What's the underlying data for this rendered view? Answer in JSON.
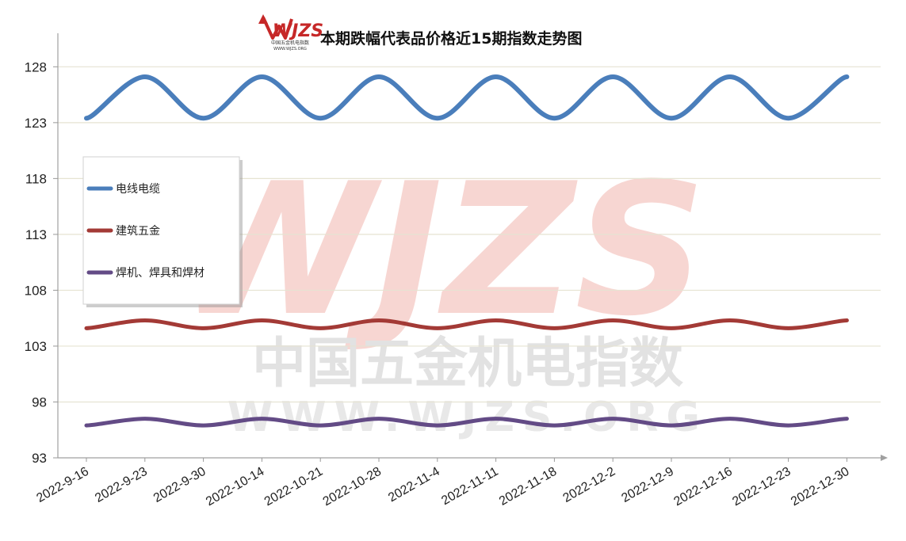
{
  "watermark": {
    "logo_text": "WJZS",
    "logo_sub": "中国五金机电指数",
    "logo_url": "WWW.WJZS.ORG",
    "brand_color": "#d9302a"
  },
  "chart_data": {
    "type": "line",
    "title": "本期跌幅代表品价格近15期指数走势图",
    "xlabel": "",
    "ylabel": "",
    "ylim": [
      93,
      131
    ],
    "yticks": [
      93,
      98,
      103,
      108,
      113,
      118,
      123,
      128
    ],
    "grid": true,
    "legend_position": "left",
    "categories": [
      "2022-9-16",
      "2022-9-23",
      "2022-9-30",
      "2022-10-14",
      "2022-10-21",
      "2022-10-28",
      "2022-11-4",
      "2022-11-11",
      "2022-11-18",
      "2022-12-2",
      "2022-12-9",
      "2022-12-16",
      "2022-12-23",
      "2022-12-30"
    ],
    "series": [
      {
        "name": "电线电缆",
        "color": "#4a7ebb",
        "values": [
          123.4,
          127.1,
          123.4,
          127.1,
          123.4,
          127.1,
          123.4,
          127.1,
          123.4,
          127.1,
          123.4,
          127.1,
          123.4,
          127.1
        ]
      },
      {
        "name": "建筑五金",
        "color": "#a33a36",
        "values": [
          104.6,
          105.3,
          104.6,
          105.3,
          104.6,
          105.3,
          104.6,
          105.3,
          104.6,
          105.3,
          104.6,
          105.3,
          104.6,
          105.3
        ]
      },
      {
        "name": "焊机、焊具和焊材",
        "color": "#634b86",
        "values": [
          95.9,
          96.5,
          95.9,
          96.5,
          95.9,
          96.5,
          95.9,
          96.5,
          95.9,
          96.5,
          95.9,
          96.5,
          95.9,
          96.5
        ]
      }
    ]
  }
}
